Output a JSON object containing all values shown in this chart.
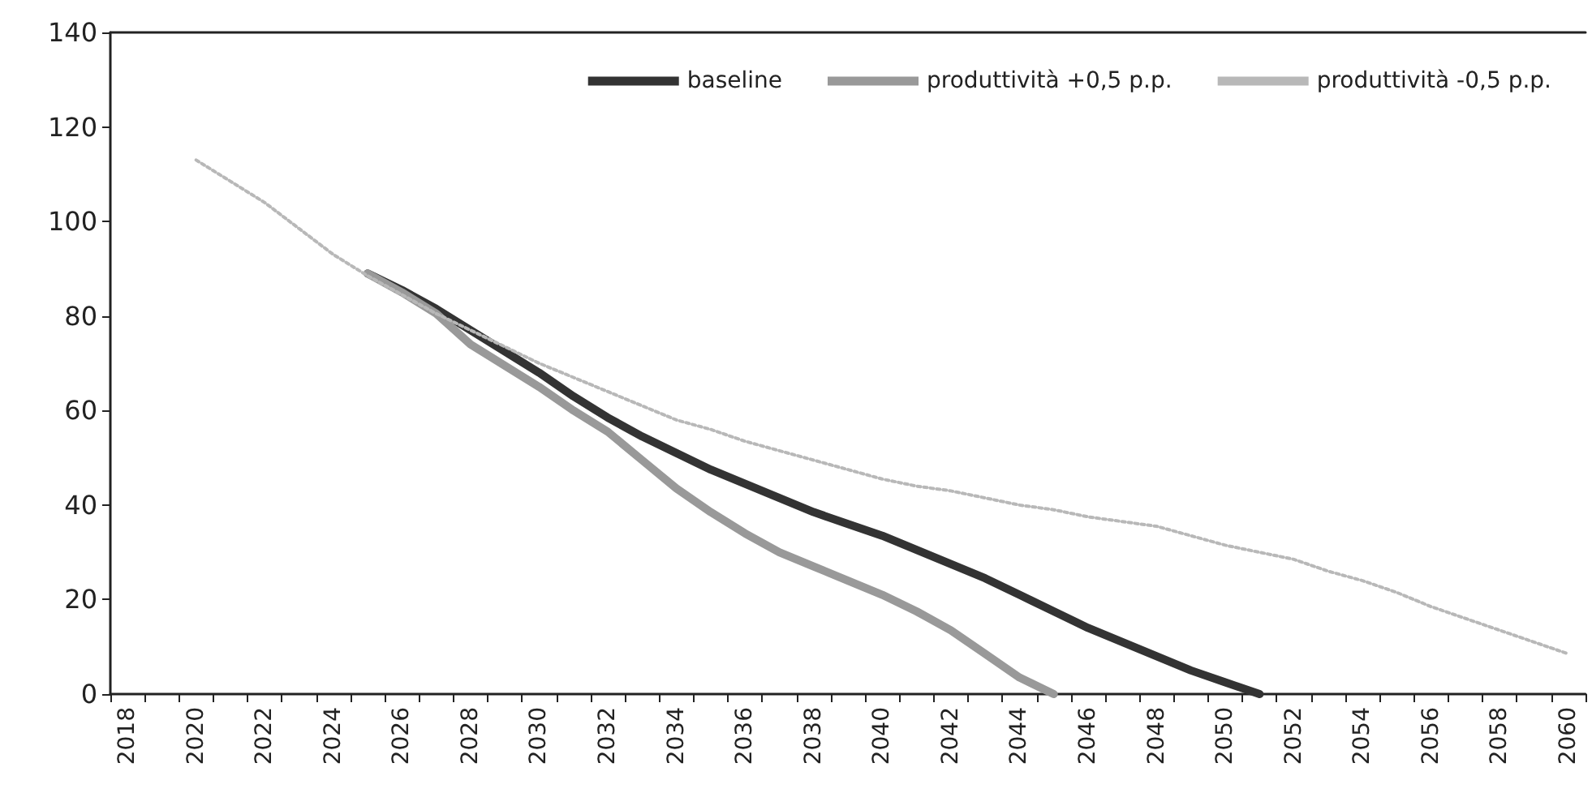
{
  "chart_data": {
    "type": "line",
    "categories": [
      "2018",
      null,
      "2020",
      null,
      "2022",
      null,
      "2024",
      null,
      "2026",
      null,
      "2028",
      null,
      "2030",
      null,
      "2032",
      null,
      "2034",
      null,
      "2036",
      null,
      "2038",
      null,
      "2040",
      null,
      "2042",
      null,
      "2044",
      null,
      "2046",
      null,
      "2048",
      null,
      "2050",
      null,
      "2052",
      null,
      "2054",
      null,
      "2056",
      null,
      "2058",
      null,
      "2060"
    ],
    "series": [
      {
        "name": "baseline",
        "color": "#333333",
        "line_style": "solid",
        "values": [
          null,
          null,
          null,
          null,
          null,
          null,
          null,
          89,
          85.5,
          81.5,
          77,
          72.5,
          68,
          63,
          58.5,
          54.5,
          51,
          47.5,
          44.5,
          41.5,
          38.5,
          36,
          33.5,
          30.5,
          27.5,
          24.5,
          21,
          17.5,
          14,
          11,
          8,
          5,
          2.5,
          0,
          null,
          null,
          null,
          null,
          null,
          null,
          null,
          null,
          null
        ]
      },
      {
        "name": "produttività +0,5 p.p.",
        "color": "#999999",
        "line_style": "solid",
        "values": [
          null,
          null,
          null,
          null,
          null,
          null,
          null,
          89,
          85,
          80.5,
          74,
          69.5,
          65,
          60,
          55.5,
          49.5,
          43.5,
          38.5,
          34,
          30,
          27,
          24,
          21,
          17.5,
          13.5,
          8.5,
          3.5,
          0,
          null,
          null,
          null,
          null,
          null,
          null,
          null,
          null,
          null,
          null,
          null,
          null,
          null,
          null,
          null
        ]
      },
      {
        "name": "produttività -0,5 p.p.",
        "color": "#b8b8b8",
        "line_style": "dotted",
        "values": [
          null,
          null,
          113,
          108.5,
          104,
          98.5,
          93,
          88.5,
          84.5,
          80.5,
          77,
          73.5,
          70,
          67,
          64,
          61,
          58,
          56,
          53.5,
          51.5,
          49.5,
          47.5,
          45.5,
          44,
          43,
          41.5,
          40,
          39,
          37.5,
          36.5,
          35.5,
          33.5,
          31.5,
          30,
          28.5,
          26,
          24,
          21.5,
          18.5,
          16,
          13.5,
          11,
          8.5
        ]
      }
    ],
    "ylim": [
      0,
      140
    ],
    "yticks": [
      0,
      20,
      40,
      60,
      80,
      100,
      120,
      140
    ],
    "grid": false,
    "legend": "top right",
    "marker": "none"
  }
}
